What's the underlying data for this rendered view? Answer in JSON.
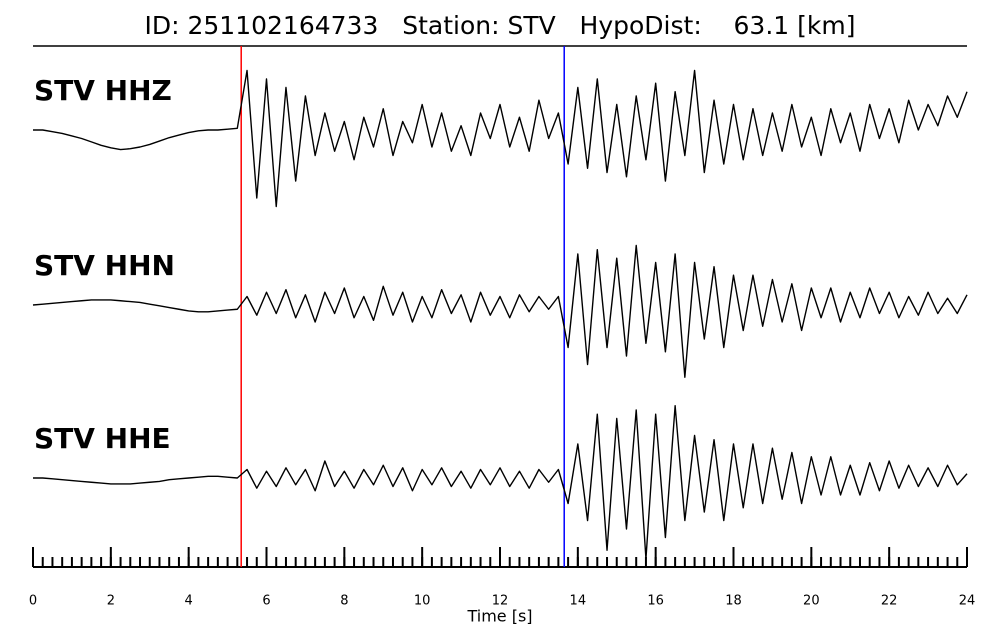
{
  "chart_data": {
    "type": "waveform",
    "title": "ID: 251102164733   Station: STV   HypoDist:    63.1 [km]",
    "xlabel": "Time [s]",
    "xlim": [
      0,
      24
    ],
    "xticks": [
      0,
      2,
      4,
      6,
      8,
      10,
      12,
      14,
      16,
      18,
      20,
      22,
      24
    ],
    "xminor_step": 0.25,
    "ylim": [
      -1,
      1
    ],
    "label_color": "#4c9a00",
    "picks": [
      {
        "x": 5.35,
        "color": "#ff0000"
      },
      {
        "x": 13.65,
        "color": "#0000ff"
      }
    ],
    "x": [
      0,
      0.25,
      0.5,
      0.75,
      1,
      1.25,
      1.5,
      1.75,
      2,
      2.25,
      2.5,
      2.75,
      3,
      3.25,
      3.5,
      3.75,
      4,
      4.25,
      4.5,
      4.75,
      5,
      5.25,
      5.5,
      5.75,
      6,
      6.25,
      6.5,
      6.75,
      7,
      7.25,
      7.5,
      7.75,
      8,
      8.25,
      8.5,
      8.75,
      9,
      9.25,
      9.5,
      9.75,
      10,
      10.25,
      10.5,
      10.75,
      11,
      11.25,
      11.5,
      11.75,
      12,
      12.25,
      12.5,
      12.75,
      13,
      13.25,
      13.5,
      13.75,
      14,
      14.25,
      14.5,
      14.75,
      15,
      15.25,
      15.5,
      15.75,
      16,
      16.25,
      16.5,
      16.75,
      17,
      17.25,
      17.5,
      17.75,
      18,
      18.25,
      18.5,
      18.75,
      19,
      19.25,
      19.5,
      19.75,
      20,
      20.25,
      20.5,
      20.75,
      21,
      21.25,
      21.5,
      21.75,
      22,
      22.25,
      22.5,
      22.75,
      23,
      23.25,
      23.5,
      23.75,
      24
    ],
    "series": [
      {
        "name": "STV HHZ",
        "color": "#000000",
        "values": [
          0,
          0,
          -0.02,
          -0.04,
          -0.07,
          -0.1,
          -0.14,
          -0.18,
          -0.21,
          -0.23,
          -0.22,
          -0.2,
          -0.17,
          -0.13,
          -0.09,
          -0.06,
          -0.03,
          -0.01,
          0,
          0,
          0.01,
          0.02,
          0.7,
          -0.8,
          0.6,
          -0.9,
          0.5,
          -0.6,
          0.4,
          -0.3,
          0.2,
          -0.25,
          0.1,
          -0.35,
          0.15,
          -0.2,
          0.25,
          -0.3,
          0.1,
          -0.15,
          0.3,
          -0.2,
          0.2,
          -0.25,
          0.05,
          -0.3,
          0.2,
          -0.1,
          0.3,
          -0.2,
          0.15,
          -0.25,
          0.35,
          -0.1,
          0.2,
          -0.4,
          0.5,
          -0.45,
          0.6,
          -0.5,
          0.3,
          -0.55,
          0.4,
          -0.35,
          0.55,
          -0.6,
          0.45,
          -0.3,
          0.7,
          -0.5,
          0.35,
          -0.4,
          0.3,
          -0.35,
          0.25,
          -0.3,
          0.2,
          -0.25,
          0.3,
          -0.2,
          0.15,
          -0.3,
          0.25,
          -0.15,
          0.2,
          -0.25,
          0.3,
          -0.1,
          0.25,
          -0.15,
          0.35,
          0,
          0.3,
          0.05,
          0.4,
          0.15,
          0.45
        ]
      },
      {
        "name": "STV HHN",
        "color": "#000000",
        "values": [
          0,
          0.01,
          0.02,
          0.03,
          0.04,
          0.05,
          0.06,
          0.06,
          0.06,
          0.05,
          0.04,
          0.03,
          0.01,
          -0.01,
          -0.03,
          -0.05,
          -0.07,
          -0.08,
          -0.08,
          -0.07,
          -0.06,
          -0.05,
          0.1,
          -0.12,
          0.15,
          -0.1,
          0.18,
          -0.15,
          0.12,
          -0.2,
          0.15,
          -0.1,
          0.2,
          -0.15,
          0.1,
          -0.18,
          0.22,
          -0.12,
          0.15,
          -0.2,
          0.1,
          -0.15,
          0.18,
          -0.1,
          0.12,
          -0.2,
          0.15,
          -0.12,
          0.1,
          -0.15,
          0.12,
          -0.08,
          0.1,
          -0.05,
          0.1,
          -0.5,
          0.6,
          -0.7,
          0.65,
          -0.5,
          0.55,
          -0.6,
          0.7,
          -0.45,
          0.5,
          -0.55,
          0.6,
          -0.85,
          0.5,
          -0.4,
          0.45,
          -0.5,
          0.35,
          -0.3,
          0.35,
          -0.25,
          0.3,
          -0.2,
          0.25,
          -0.3,
          0.2,
          -0.15,
          0.2,
          -0.2,
          0.15,
          -0.15,
          0.2,
          -0.1,
          0.15,
          -0.15,
          0.1,
          -0.12,
          0.15,
          -0.1,
          0.08,
          -0.1,
          0.12
        ]
      },
      {
        "name": "STV HHE",
        "color": "#000000",
        "values": [
          0,
          0,
          -0.01,
          -0.02,
          -0.03,
          -0.04,
          -0.05,
          -0.06,
          -0.07,
          -0.07,
          -0.07,
          -0.06,
          -0.05,
          -0.04,
          -0.02,
          -0.01,
          0,
          0.01,
          0.02,
          0.02,
          0.01,
          0,
          0.1,
          -0.12,
          0.08,
          -0.1,
          0.12,
          -0.08,
          0.1,
          -0.15,
          0.2,
          -0.1,
          0.08,
          -0.12,
          0.1,
          -0.08,
          0.15,
          -0.1,
          0.12,
          -0.15,
          0.1,
          -0.08,
          0.12,
          -0.1,
          0.08,
          -0.12,
          0.1,
          -0.08,
          0.12,
          -0.1,
          0.08,
          -0.12,
          0.1,
          -0.05,
          0.1,
          -0.3,
          0.4,
          -0.5,
          0.75,
          -0.85,
          0.7,
          -0.6,
          0.8,
          -0.95,
          0.75,
          -0.7,
          0.85,
          -0.5,
          0.5,
          -0.4,
          0.45,
          -0.5,
          0.4,
          -0.35,
          0.4,
          -0.3,
          0.35,
          -0.25,
          0.3,
          -0.3,
          0.25,
          -0.2,
          0.25,
          -0.2,
          0.15,
          -0.2,
          0.18,
          -0.15,
          0.2,
          -0.12,
          0.15,
          -0.1,
          0.12,
          -0.1,
          0.15,
          -0.08,
          0.05
        ]
      }
    ]
  }
}
